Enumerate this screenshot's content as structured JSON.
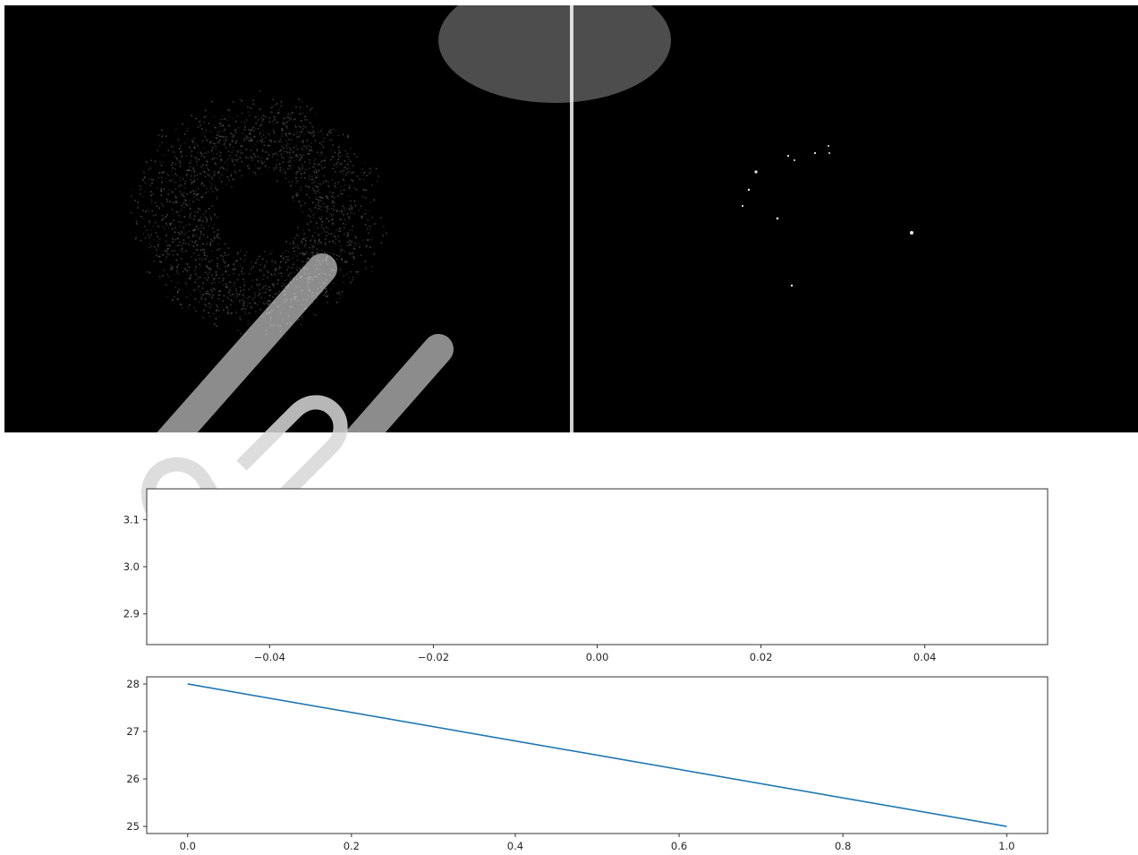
{
  "image_panels": {
    "left_description_icon": "noisy-ring-image-icon",
    "right_description_icon": "sparse-dots-image-icon"
  },
  "chart_data": [
    {
      "type": "line",
      "title": "",
      "xlabel": "",
      "ylabel": "",
      "xlim": [
        -0.055,
        0.055
      ],
      "ylim": [
        2.835,
        3.165
      ],
      "xticks": [
        -0.04,
        -0.02,
        0.0,
        0.02,
        0.04
      ],
      "xtick_labels": [
        "−0.04",
        "−0.02",
        "0.00",
        "0.02",
        "0.04"
      ],
      "yticks": [
        2.9,
        3.0,
        3.1
      ],
      "ytick_labels": [
        "2.9",
        "3.0",
        "3.1"
      ],
      "series": [],
      "grid": false
    },
    {
      "type": "line",
      "title": "",
      "xlabel": "",
      "ylabel": "",
      "xlim": [
        -0.05,
        1.05
      ],
      "ylim": [
        24.85,
        28.15
      ],
      "xticks": [
        0.0,
        0.2,
        0.4,
        0.6,
        0.8,
        1.0
      ],
      "xtick_labels": [
        "0.0",
        "0.2",
        "0.4",
        "0.6",
        "0.8",
        "1.0"
      ],
      "yticks": [
        25,
        26,
        27,
        28
      ],
      "ytick_labels": [
        "25",
        "26",
        "27",
        "28"
      ],
      "series": [
        {
          "x": [
            0.0,
            1.0
          ],
          "y": [
            28,
            25
          ],
          "color": "#1f77b4"
        }
      ],
      "grid": false
    }
  ],
  "colors": {
    "line": "#1f77b4",
    "axes": "#333333",
    "panel_bg": "#000000"
  }
}
